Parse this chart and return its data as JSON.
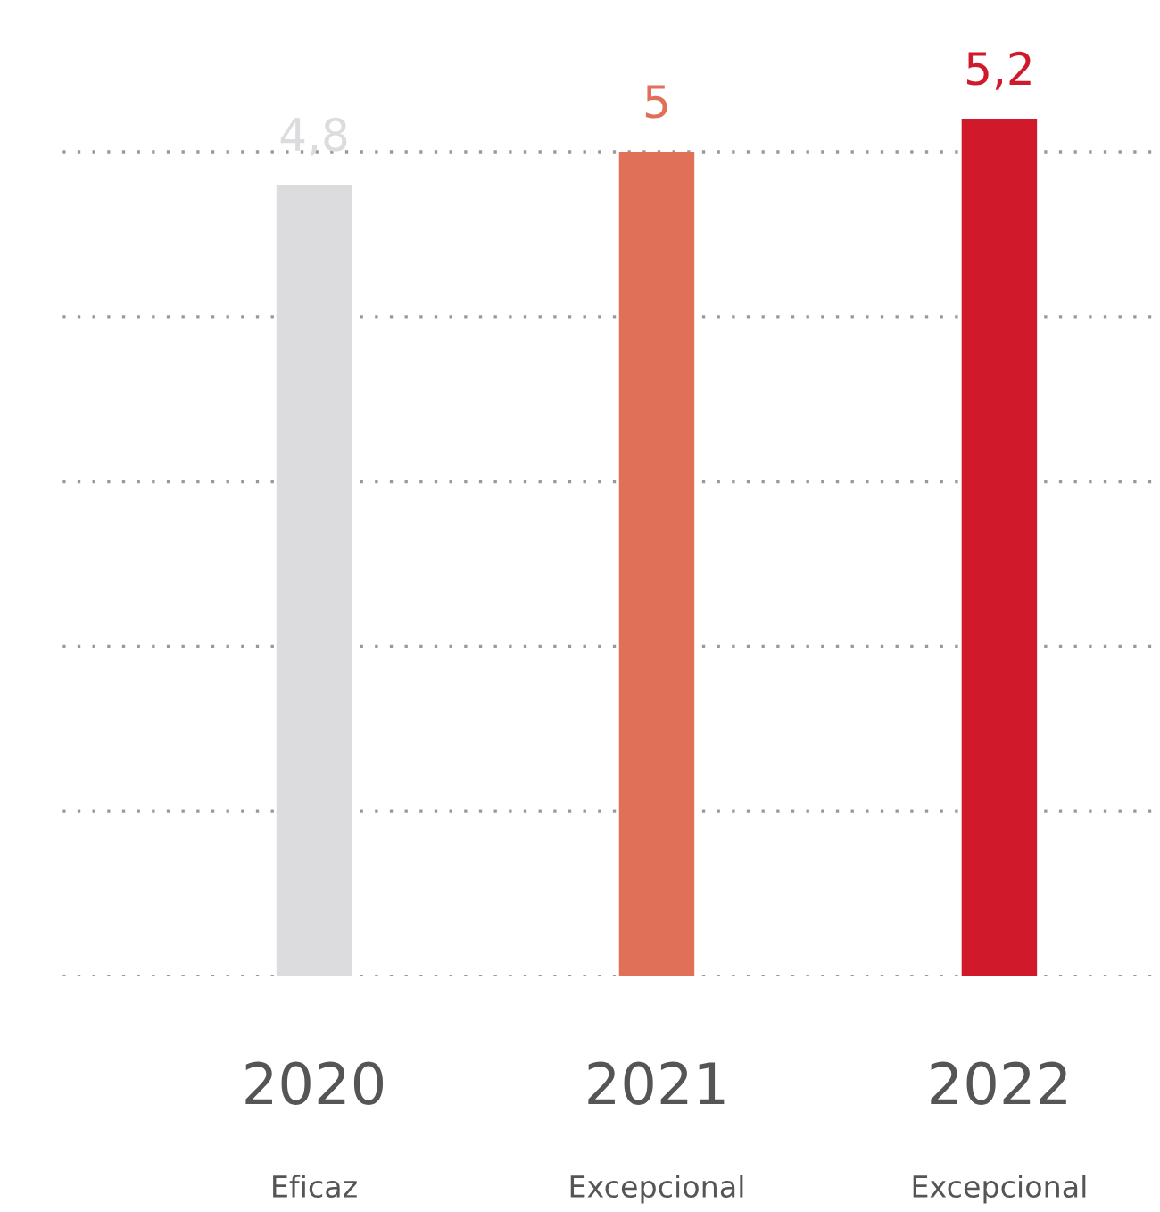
{
  "chart_data": {
    "type": "bar",
    "categories": [
      "2020\nEficaz",
      "2021\nExcepcional",
      "2022\nExcepcional"
    ],
    "values": [
      4.8,
      5,
      5.2
    ],
    "colors": [
      "#dcdcde",
      "#e07058",
      "#d0192b"
    ],
    "value_labels": [
      "4,8",
      "5",
      "5,2"
    ],
    "yticks": [
      {
        "value": 0,
        "label": null
      },
      {
        "value": 1,
        "label": null
      },
      {
        "value": 2,
        "label": null
      },
      {
        "value": 3,
        "label": null
      },
      {
        "value": 4,
        "label": null
      },
      {
        "value": 5,
        "label": null
      }
    ],
    "grid": "y",
    "tick_labels": "x"
  }
}
